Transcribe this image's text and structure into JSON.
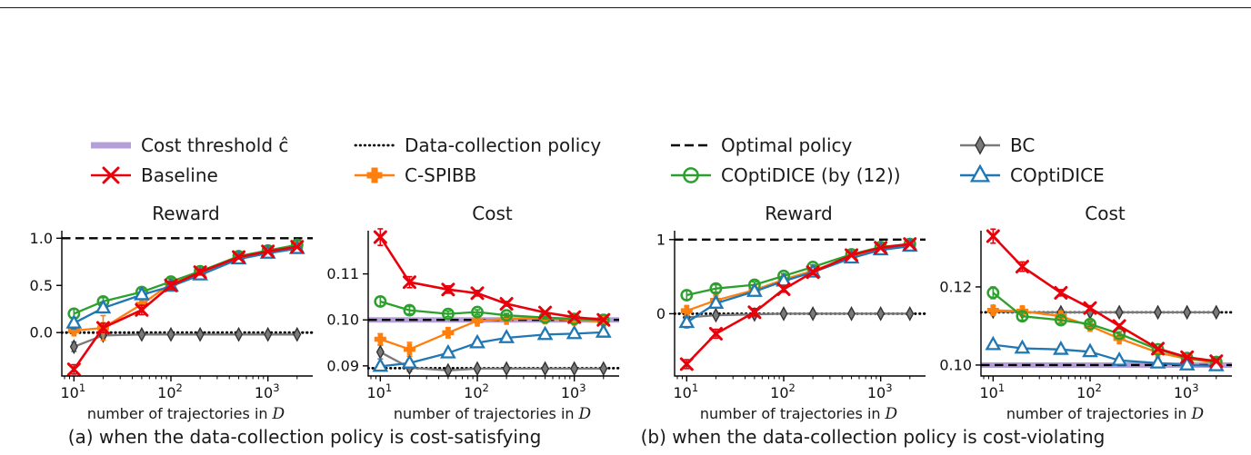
{
  "colors": {
    "threshold": "#b49fd8",
    "black": "#000000",
    "bc_gray": "#7a7a7a",
    "baseline_red": "#e8000b",
    "cspibb_orange": "#ff7f0e",
    "coptidice12_green": "#2ca02c",
    "coptidice_blue": "#1f77b4"
  },
  "legend": {
    "rows": [
      [
        {
          "label": "Cost threshold ĉ",
          "swatch": "thick",
          "color": "#b49fd8"
        },
        {
          "label": "Data-collection policy",
          "swatch": "dotted",
          "color": "#000000"
        },
        {
          "label": "Optimal policy",
          "swatch": "dashed",
          "color": "#000000"
        },
        {
          "label": "BC",
          "swatch": "marker",
          "marker": "diamond",
          "color": "#7a7a7a"
        }
      ],
      [
        {
          "label": "Baseline",
          "swatch": "marker",
          "marker": "x",
          "color": "#e8000b"
        },
        {
          "label": "C-SPIBB",
          "swatch": "marker",
          "marker": "plus",
          "color": "#ff7f0e"
        },
        {
          "label": "COptiDICE (by (12))",
          "swatch": "marker",
          "marker": "circle",
          "color": "#2ca02c"
        },
        {
          "label": "COptiDICE",
          "swatch": "marker",
          "marker": "triangle",
          "color": "#1f77b4"
        }
      ]
    ]
  },
  "captions": [
    "(a) when the data-collection policy is cost-satisfying",
    "(b) when the data-collection policy is cost-violating"
  ],
  "chart_data": [
    {
      "type": "line",
      "title": "Reward",
      "xlabel_text": "number of trajectories in",
      "xlabel_math": "D",
      "xscale": "log",
      "x": [
        10,
        20,
        50,
        100,
        200,
        500,
        1000,
        2000
      ],
      "xlim": [
        7.5,
        2900
      ],
      "ylim": [
        -0.46,
        1.08
      ],
      "yticks": [
        {
          "value": 0.0,
          "label": "0.0"
        },
        {
          "value": 0.5,
          "label": "0.5"
        },
        {
          "value": 1.0,
          "label": "1.0"
        }
      ],
      "xticks": [
        {
          "value": 10,
          "base": "10",
          "exp": "1"
        },
        {
          "value": 100,
          "base": "10",
          "exp": "2"
        },
        {
          "value": 1000,
          "base": "10",
          "exp": "3"
        }
      ],
      "hlines": [
        {
          "name": "Data-collection policy",
          "y": 0.0,
          "style": "dotted",
          "color": "#000000"
        },
        {
          "name": "Optimal policy",
          "y": 1.0,
          "style": "dashed",
          "color": "#000000"
        }
      ],
      "series": [
        {
          "name": "BC",
          "color": "#7a7a7a",
          "marker": "diamond",
          "y": [
            -0.15,
            -0.03,
            -0.02,
            -0.02,
            -0.02,
            -0.02,
            -0.02,
            -0.02
          ],
          "err": [
            0.05,
            0.02,
            0.01,
            0.01,
            0.01,
            0.01,
            0.01,
            0.01
          ]
        },
        {
          "name": "C-SPIBB",
          "color": "#ff7f0e",
          "marker": "plus",
          "y": [
            0.02,
            0.05,
            0.3,
            0.52,
            0.63,
            0.8,
            0.86,
            0.91
          ],
          "err": [
            0.04,
            0.13,
            0.07,
            0.04,
            0.02,
            0.01,
            0.01,
            0.01
          ]
        },
        {
          "name": "COptiDICE (by (12))",
          "color": "#2ca02c",
          "marker": "circle",
          "y": [
            0.2,
            0.33,
            0.43,
            0.54,
            0.65,
            0.81,
            0.87,
            0.93
          ],
          "err": [
            0.05,
            0.04,
            0.03,
            0.03,
            0.02,
            0.02,
            0.01,
            0.01
          ]
        },
        {
          "name": "COptiDICE",
          "color": "#1f77b4",
          "marker": "triangle",
          "y": [
            0.1,
            0.26,
            0.4,
            0.49,
            0.61,
            0.78,
            0.84,
            0.89
          ],
          "err": [
            0.06,
            0.05,
            0.04,
            0.03,
            0.02,
            0.02,
            0.01,
            0.01
          ]
        },
        {
          "name": "Baseline",
          "color": "#e8000b",
          "marker": "x",
          "y": [
            -0.39,
            0.05,
            0.24,
            0.5,
            0.64,
            0.8,
            0.86,
            0.91
          ],
          "err": [
            0.05,
            0.05,
            0.05,
            0.04,
            0.03,
            0.02,
            0.01,
            0.01
          ]
        }
      ]
    },
    {
      "type": "line",
      "title": "Cost",
      "xlabel_text": "number of trajectories in",
      "xlabel_math": "D",
      "xscale": "log",
      "x": [
        10,
        20,
        50,
        100,
        200,
        500,
        1000,
        2000
      ],
      "xlim": [
        7.5,
        2900
      ],
      "ylim": [
        0.0878,
        0.1194
      ],
      "yticks": [
        {
          "value": 0.09,
          "label": "0.09"
        },
        {
          "value": 0.1,
          "label": "0.10"
        },
        {
          "value": 0.11,
          "label": "0.11"
        }
      ],
      "xticks": [
        {
          "value": 10,
          "base": "10",
          "exp": "1"
        },
        {
          "value": 100,
          "base": "10",
          "exp": "2"
        },
        {
          "value": 1000,
          "base": "10",
          "exp": "3"
        }
      ],
      "hlines": [
        {
          "name": "Cost threshold ĉ",
          "y": 0.1,
          "style": "thick",
          "color": "#b49fd8"
        },
        {
          "name": "Data-collection policy",
          "y": 0.0895,
          "style": "dotted",
          "color": "#000000"
        },
        {
          "name": "Optimal policy",
          "y": 0.1,
          "style": "dashed",
          "color": "#000000"
        }
      ],
      "series": [
        {
          "name": "BC",
          "color": "#7a7a7a",
          "marker": "diamond",
          "y": [
            0.093,
            0.0896,
            0.089,
            0.0894,
            0.0894,
            0.0894,
            0.0894,
            0.0894
          ],
          "err": [
            0.0015,
            0.0008,
            0.0005,
            0.0004,
            0.0003,
            0.0003,
            0.0002,
            0.0002
          ]
        },
        {
          "name": "C-SPIBB",
          "color": "#ff7f0e",
          "marker": "plus",
          "y": [
            0.0958,
            0.0936,
            0.0972,
            0.0998,
            0.1002,
            0.1003,
            0.1,
            0.0996
          ],
          "err": [
            0.0012,
            0.0015,
            0.001,
            0.0006,
            0.0004,
            0.0003,
            0.0002,
            0.0002
          ]
        },
        {
          "name": "COptiDICE (by (12))",
          "color": "#2ca02c",
          "marker": "circle",
          "y": [
            0.104,
            0.1021,
            0.1013,
            0.1017,
            0.101,
            0.1005,
            0.1002,
            0.1
          ],
          "err": [
            0.001,
            0.0008,
            0.0006,
            0.0005,
            0.0004,
            0.0003,
            0.0002,
            0.0002
          ]
        },
        {
          "name": "COptiDICE",
          "color": "#1f77b4",
          "marker": "triangle",
          "y": [
            0.0899,
            0.0906,
            0.0928,
            0.095,
            0.0961,
            0.0968,
            0.097,
            0.0973
          ],
          "err": [
            0.0008,
            0.0008,
            0.0007,
            0.0005,
            0.0004,
            0.0003,
            0.0002,
            0.0002
          ]
        },
        {
          "name": "Baseline",
          "color": "#e8000b",
          "marker": "x",
          "y": [
            0.118,
            0.1082,
            0.1066,
            0.1058,
            0.1035,
            0.1016,
            0.1006,
            0.1
          ],
          "err": [
            0.0018,
            0.0012,
            0.0008,
            0.0006,
            0.0005,
            0.0003,
            0.0002,
            0.0002
          ]
        }
      ]
    },
    {
      "type": "line",
      "title": "Reward",
      "xlabel_text": "number of trajectories in",
      "xlabel_math": "D",
      "xscale": "log",
      "x": [
        10,
        20,
        50,
        100,
        200,
        500,
        1000,
        2000
      ],
      "xlim": [
        7.5,
        2900
      ],
      "ylim": [
        -0.84,
        1.12
      ],
      "yticks": [
        {
          "value": 0,
          "label": "0"
        },
        {
          "value": 1,
          "label": "1"
        }
      ],
      "xticks": [
        {
          "value": 10,
          "base": "10",
          "exp": "1"
        },
        {
          "value": 100,
          "base": "10",
          "exp": "2"
        },
        {
          "value": 1000,
          "base": "10",
          "exp": "3"
        }
      ],
      "hlines": [
        {
          "name": "Data-collection policy",
          "y": 0.0,
          "style": "dotted",
          "color": "#000000"
        },
        {
          "name": "Optimal policy",
          "y": 1.0,
          "style": "dashed",
          "color": "#000000"
        }
      ],
      "series": [
        {
          "name": "BC",
          "color": "#7a7a7a",
          "marker": "diamond",
          "y": [
            -0.05,
            -0.02,
            -0.01,
            0.0,
            0.0,
            0.0,
            0.0,
            0.0
          ],
          "err": [
            0.04,
            0.02,
            0.01,
            0.01,
            0.01,
            0.01,
            0.01,
            0.01
          ]
        },
        {
          "name": "C-SPIBB",
          "color": "#ff7f0e",
          "marker": "plus",
          "y": [
            0.04,
            0.18,
            0.32,
            0.46,
            0.58,
            0.77,
            0.87,
            0.92
          ],
          "err": [
            0.06,
            0.07,
            0.05,
            0.04,
            0.03,
            0.02,
            0.01,
            0.01
          ]
        },
        {
          "name": "COptiDICE (by (12))",
          "color": "#2ca02c",
          "marker": "circle",
          "y": [
            0.25,
            0.34,
            0.39,
            0.51,
            0.63,
            0.8,
            0.9,
            0.94
          ],
          "err": [
            0.06,
            0.05,
            0.04,
            0.03,
            0.03,
            0.02,
            0.01,
            0.01
          ]
        },
        {
          "name": "COptiDICE",
          "color": "#1f77b4",
          "marker": "triangle",
          "y": [
            -0.12,
            0.14,
            0.3,
            0.44,
            0.56,
            0.75,
            0.86,
            0.91
          ],
          "err": [
            0.07,
            0.06,
            0.05,
            0.04,
            0.03,
            0.02,
            0.01,
            0.01
          ]
        },
        {
          "name": "Baseline",
          "color": "#e8000b",
          "marker": "x",
          "y": [
            -0.68,
            -0.27,
            0.02,
            0.33,
            0.56,
            0.79,
            0.89,
            0.94
          ],
          "err": [
            0.06,
            0.06,
            0.05,
            0.04,
            0.03,
            0.02,
            0.01,
            0.01
          ]
        }
      ]
    },
    {
      "type": "line",
      "title": "Cost",
      "xlabel_text": "number of trajectories in",
      "xlabel_math": "D",
      "xscale": "log",
      "x": [
        10,
        20,
        50,
        100,
        200,
        500,
        1000,
        2000
      ],
      "xlim": [
        7.5,
        2900
      ],
      "ylim": [
        0.0972,
        0.1344
      ],
      "yticks": [
        {
          "value": 0.1,
          "label": "0.10"
        },
        {
          "value": 0.12,
          "label": "0.12"
        }
      ],
      "xticks": [
        {
          "value": 10,
          "base": "10",
          "exp": "1"
        },
        {
          "value": 100,
          "base": "10",
          "exp": "2"
        },
        {
          "value": 1000,
          "base": "10",
          "exp": "3"
        }
      ],
      "hlines": [
        {
          "name": "Cost threshold ĉ",
          "y": 0.1,
          "style": "thick",
          "color": "#b49fd8"
        },
        {
          "name": "Data-collection policy",
          "y": 0.1135,
          "style": "dotted",
          "color": "#000000"
        },
        {
          "name": "Optimal policy",
          "y": 0.1,
          "style": "dashed",
          "color": "#000000"
        }
      ],
      "series": [
        {
          "name": "BC",
          "color": "#7a7a7a",
          "marker": "diamond",
          "y": [
            0.1137,
            0.1135,
            0.1135,
            0.1135,
            0.1135,
            0.1135,
            0.1135,
            0.1135
          ],
          "err": [
            0.0008,
            0.0005,
            0.0004,
            0.0003,
            0.0003,
            0.0002,
            0.0002,
            0.0002
          ]
        },
        {
          "name": "C-SPIBB",
          "color": "#ff7f0e",
          "marker": "plus",
          "y": [
            0.114,
            0.1138,
            0.1125,
            0.11,
            0.1068,
            0.1032,
            0.1016,
            0.1006
          ],
          "err": [
            0.0012,
            0.001,
            0.0008,
            0.0006,
            0.0005,
            0.0003,
            0.0002,
            0.0002
          ]
        },
        {
          "name": "COptiDICE (by (12))",
          "color": "#2ca02c",
          "marker": "circle",
          "y": [
            0.1185,
            0.1125,
            0.1115,
            0.1105,
            0.108,
            0.104,
            0.1018,
            0.1008
          ],
          "err": [
            0.0015,
            0.001,
            0.0008,
            0.0006,
            0.0005,
            0.0003,
            0.0002,
            0.0002
          ]
        },
        {
          "name": "COptiDICE",
          "color": "#1f77b4",
          "marker": "triangle",
          "y": [
            0.1052,
            0.1043,
            0.104,
            0.1034,
            0.1012,
            0.1005,
            0.1,
            0.0998
          ],
          "err": [
            0.0008,
            0.0007,
            0.0006,
            0.0005,
            0.0004,
            0.0003,
            0.0002,
            0.0002
          ]
        },
        {
          "name": "Baseline",
          "color": "#e8000b",
          "marker": "x",
          "y": [
            0.133,
            0.1252,
            0.1185,
            0.1146,
            0.11,
            0.1042,
            0.102,
            0.101
          ],
          "err": [
            0.0018,
            0.0012,
            0.0008,
            0.0006,
            0.0005,
            0.0003,
            0.0002,
            0.0002
          ]
        }
      ]
    }
  ]
}
